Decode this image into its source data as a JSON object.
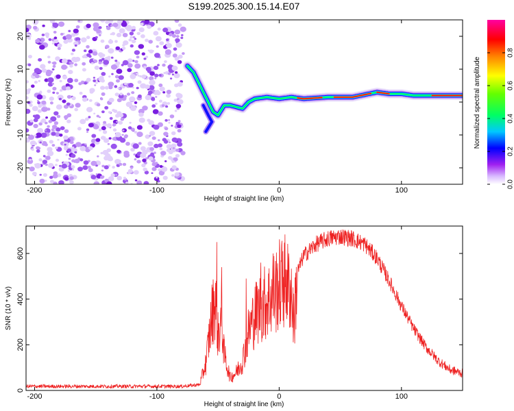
{
  "title": "S199.2025.300.15.14.E07",
  "chart_data": [
    {
      "type": "heatmap",
      "name": "spectrogram",
      "xlabel": "Height of straight line (km)",
      "ylabel": "Frequency (Hz)",
      "xlim": [
        -207,
        150
      ],
      "ylim": [
        -25,
        25
      ],
      "xticks": [
        -200,
        -100,
        0,
        100
      ],
      "yticks": [
        -20,
        -10,
        0,
        10,
        20
      ],
      "colorbar": {
        "label": "Normalized spectral amplitude",
        "range": [
          0,
          1
        ],
        "ticks": [
          "0.0",
          "0.2",
          "0.4",
          "0.6",
          "0.8"
        ],
        "colors": [
          "#ffffff",
          "#a020f0",
          "#0000ff",
          "#00c8ff",
          "#00ff64",
          "#64ff00",
          "#ffff00",
          "#ff8000",
          "#ff0000",
          "#ff00a0"
        ]
      },
      "signal_ridge": {
        "x": [
          -75,
          -70,
          -66,
          -62,
          -58,
          -54,
          -50,
          -45,
          -40,
          -35,
          -30,
          -25,
          -20,
          -10,
          0,
          10,
          20,
          40,
          60,
          80,
          90,
          100,
          110,
          120,
          150
        ],
        "y": [
          11,
          9,
          6,
          3,
          0,
          -3,
          -4,
          -1,
          -1,
          -1.5,
          -2,
          0,
          1,
          1.5,
          1,
          1.5,
          1,
          1.5,
          1.5,
          3,
          2.5,
          2.5,
          2,
          2,
          2
        ]
      }
    },
    {
      "type": "line",
      "name": "snr",
      "xlabel": "Height of straight line (km)",
      "ylabel": "SNR (10 * v/v)",
      "xlim": [
        -207,
        150
      ],
      "ylim": [
        0,
        720
      ],
      "xticks": [
        -200,
        -100,
        0,
        100
      ],
      "yticks": [
        0,
        200,
        400,
        600
      ],
      "color": "#ee2020",
      "envelope": {
        "x": [
          -207,
          -80,
          -65,
          -60,
          -55,
          -52,
          -50,
          -47,
          -45,
          -40,
          -35,
          -30,
          -25,
          -20,
          -15,
          -10,
          -5,
          0,
          5,
          10,
          12,
          15,
          20,
          30,
          40,
          50,
          60,
          70,
          80,
          90,
          100,
          110,
          120,
          130,
          140,
          150
        ],
        "y": [
          18,
          18,
          25,
          120,
          330,
          400,
          240,
          320,
          160,
          55,
          80,
          130,
          260,
          330,
          370,
          390,
          420,
          460,
          480,
          430,
          300,
          520,
          590,
          640,
          665,
          675,
          665,
          640,
          580,
          480,
          370,
          270,
          190,
          130,
          90,
          75
        ]
      },
      "spikes": [
        {
          "x": -51,
          "y": 650
        },
        {
          "x": -47,
          "y": 540
        },
        {
          "x": -27,
          "y": 490
        },
        {
          "x": -15,
          "y": 560
        },
        {
          "x": -5,
          "y": 600
        },
        {
          "x": 3,
          "y": 610
        },
        {
          "x": 6,
          "y": 530
        }
      ]
    }
  ]
}
